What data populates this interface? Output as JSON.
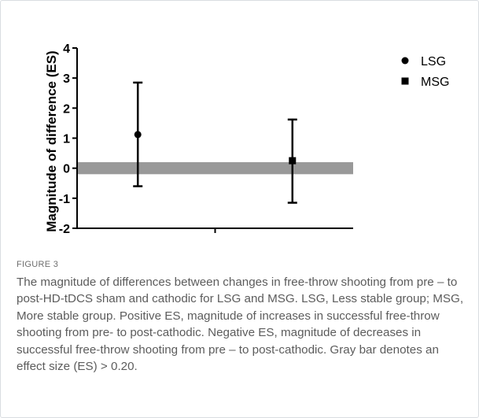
{
  "chart_data": {
    "type": "scatter",
    "ylabel": "Magnitude of difference (ES)",
    "ylim": [
      -2,
      4
    ],
    "yticks": [
      "-2",
      "-1",
      "0",
      "1",
      "2",
      "3",
      "4"
    ],
    "xlim": [
      0,
      1
    ],
    "grid": false,
    "legend_position": "top-right",
    "reference_band": {
      "from": -0.2,
      "to": 0.2,
      "color": "#999999"
    },
    "series": [
      {
        "name": "LSG",
        "marker": "circle",
        "x": 0.22,
        "y": 1.12,
        "error_low": -0.6,
        "error_high": 2.85
      },
      {
        "name": "MSG",
        "marker": "square",
        "x": 0.78,
        "y": 0.25,
        "error_low": -1.15,
        "error_high": 1.62
      }
    ]
  },
  "caption": {
    "label": "FIGURE 3",
    "text": "The magnitude of differences between changes in free-throw shooting from pre – to post-HD-tDCS sham and cathodic for LSG and MSG. LSG, Less stable group; MSG, More stable group. Positive ES, magnitude of increases in successful free-throw shooting from pre- to post-cathodic. Negative ES, magnitude of decreases in successful free-throw shooting from pre – to post-cathodic. Gray bar denotes an effect size (ES) > 0.20."
  }
}
